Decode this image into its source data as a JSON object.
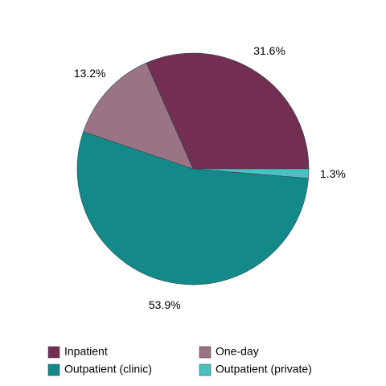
{
  "chart_data": {
    "type": "pie",
    "categories": [
      "Inpatient",
      "Outpatient (private)",
      "Outpatient (clinic)",
      "One-day"
    ],
    "values": [
      31.6,
      1.3,
      53.9,
      13.2
    ],
    "value_labels": [
      "31.6%",
      "1.3%",
      "53.9%",
      "13.2%"
    ],
    "colors": [
      "#722f52",
      "#4cc0c0",
      "#14898a",
      "#9a7385"
    ],
    "legend": "bottom"
  }
}
